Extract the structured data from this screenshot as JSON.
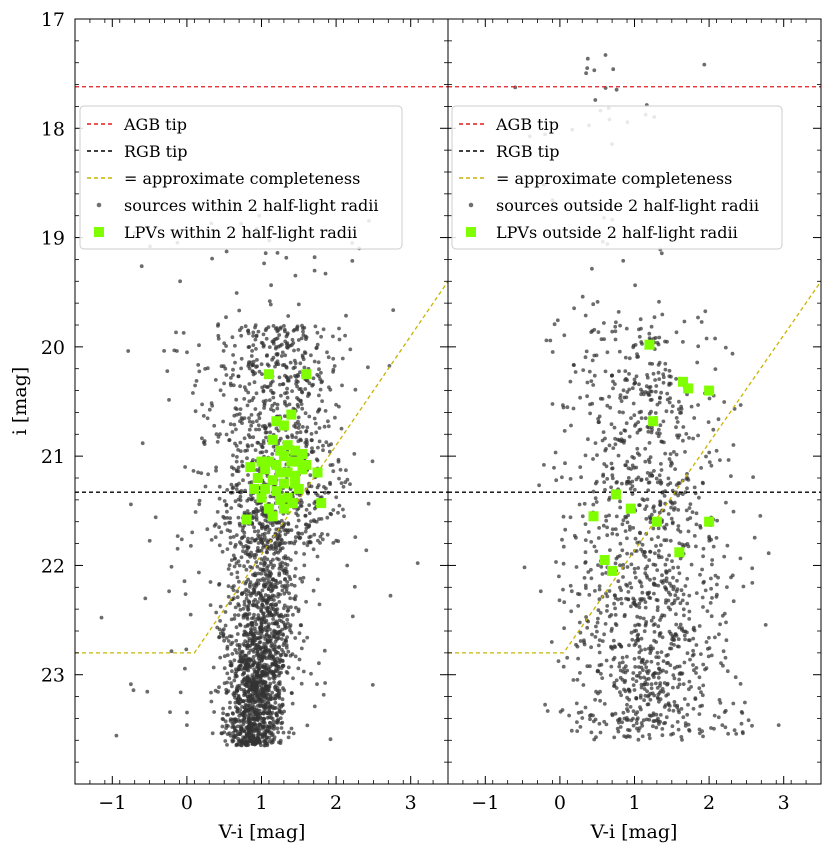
{
  "chart_data": [
    {
      "type": "scatter",
      "panel": "left",
      "xlabel": "V-i [mag]",
      "ylabel": "i [mag]",
      "xlim": [
        -1.5,
        3.5
      ],
      "ylim": [
        24.0,
        17.0
      ],
      "xticks": [
        -1,
        0,
        1,
        2,
        3
      ],
      "xtick_labels": [
        "−1",
        "0",
        "1",
        "2",
        "3"
      ],
      "yticks": [
        17,
        18,
        19,
        20,
        21,
        22,
        23
      ],
      "ytick_labels": [
        "17",
        "18",
        "19",
        "20",
        "21",
        "22",
        "23"
      ],
      "reference_lines": {
        "agb_tip_i": 17.62,
        "rgb_tip_i": 21.33,
        "completeness": [
          [
            -1.5,
            22.8
          ],
          [
            0.1,
            22.8
          ],
          [
            3.5,
            19.4
          ]
        ]
      },
      "legend": [
        {
          "label": "AGB tip",
          "style": "dashed",
          "color": "#e41a1c"
        },
        {
          "label": "RGB tip",
          "style": "dashed",
          "color": "#000000"
        },
        {
          "label": "= approximate completeness",
          "style": "dashed",
          "color": "#c8b400"
        },
        {
          "label": "sources within 2 half-light radii",
          "style": "dot",
          "color": "#333333"
        },
        {
          "label": "LPVs within 2 half-light radii",
          "style": "square",
          "color": "#7fff00"
        }
      ],
      "sources_summary": {
        "count_estimate": 2600,
        "ridge_color": 0.95,
        "ridge_top_i": 21.2,
        "ridge_bottom_i": 23.6
      },
      "lpvs": [
        [
          1.1,
          20.25
        ],
        [
          1.6,
          20.25
        ],
        [
          1.4,
          20.62
        ],
        [
          1.2,
          20.68
        ],
        [
          1.3,
          20.72
        ],
        [
          1.15,
          20.85
        ],
        [
          1.35,
          20.9
        ],
        [
          1.25,
          20.95
        ],
        [
          1.45,
          20.95
        ],
        [
          1.55,
          20.98
        ],
        [
          1.3,
          21.0
        ],
        [
          1.0,
          21.05
        ],
        [
          1.1,
          21.05
        ],
        [
          1.2,
          21.08
        ],
        [
          1.4,
          21.05
        ],
        [
          1.5,
          21.05
        ],
        [
          1.6,
          21.08
        ],
        [
          0.85,
          21.1
        ],
        [
          1.05,
          21.12
        ],
        [
          1.25,
          21.15
        ],
        [
          1.35,
          21.15
        ],
        [
          1.45,
          21.18
        ],
        [
          1.55,
          21.12
        ],
        [
          1.75,
          21.15
        ],
        [
          0.95,
          21.2
        ],
        [
          1.15,
          21.22
        ],
        [
          1.3,
          21.25
        ],
        [
          1.45,
          21.25
        ],
        [
          0.9,
          21.3
        ],
        [
          1.05,
          21.3
        ],
        [
          1.2,
          21.32
        ],
        [
          1.5,
          21.3
        ],
        [
          1.0,
          21.38
        ],
        [
          1.35,
          21.38
        ],
        [
          1.25,
          21.4
        ],
        [
          1.42,
          21.43
        ],
        [
          1.8,
          21.43
        ],
        [
          1.1,
          21.48
        ],
        [
          1.3,
          21.48
        ],
        [
          0.8,
          21.58
        ],
        [
          1.15,
          21.55
        ]
      ]
    },
    {
      "type": "scatter",
      "panel": "right",
      "xlabel": "V-i [mag]",
      "xlim": [
        -1.5,
        3.5
      ],
      "ylim": [
        24.0,
        17.0
      ],
      "xticks": [
        -1,
        0,
        1,
        2,
        3
      ],
      "xtick_labels": [
        "−1",
        "0",
        "1",
        "2",
        "3"
      ],
      "reference_lines": {
        "agb_tip_i": 17.62,
        "rgb_tip_i": 21.33,
        "completeness": [
          [
            -1.5,
            22.8
          ],
          [
            0.05,
            22.8
          ],
          [
            3.5,
            19.4
          ]
        ]
      },
      "legend": [
        {
          "label": "AGB tip",
          "style": "dashed",
          "color": "#e41a1c"
        },
        {
          "label": "RGB tip",
          "style": "dashed",
          "color": "#000000"
        },
        {
          "label": "= approximate completeness",
          "style": "dashed",
          "color": "#c8b400"
        },
        {
          "label": "sources outside 2 half-light radii",
          "style": "dot",
          "color": "#333333"
        },
        {
          "label": "LPVs outside 2 half-light radii",
          "style": "square",
          "color": "#7fff00"
        }
      ],
      "sources_summary": {
        "count_estimate": 1300,
        "color_center": 1.1,
        "i_range": [
          19.5,
          23.6
        ]
      },
      "lpvs": [
        [
          1.2,
          19.98
        ],
        [
          1.65,
          20.32
        ],
        [
          1.72,
          20.38
        ],
        [
          2.0,
          20.4
        ],
        [
          1.25,
          20.68
        ],
        [
          0.75,
          21.35
        ],
        [
          0.95,
          21.48
        ],
        [
          0.45,
          21.55
        ],
        [
          1.3,
          21.6
        ],
        [
          2.0,
          21.6
        ],
        [
          0.6,
          21.95
        ],
        [
          0.7,
          22.05
        ],
        [
          1.6,
          21.88
        ]
      ]
    }
  ],
  "colors": {
    "points": "#333333",
    "lpv": "#7fff00",
    "agb": "#e41a1c",
    "rgb": "#000000",
    "completeness": "#c8b400"
  }
}
